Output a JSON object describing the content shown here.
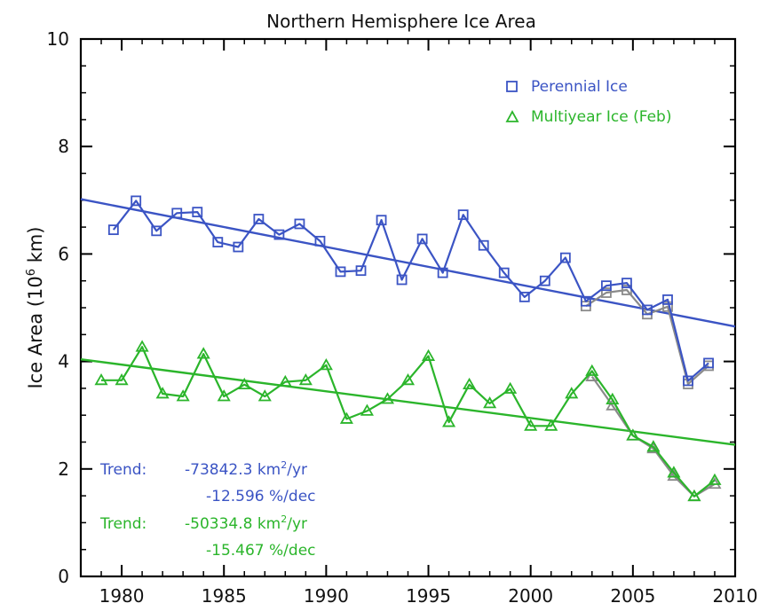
{
  "chart_data": {
    "type": "line",
    "title": "Northern Hemisphere Ice Area",
    "xlabel": "",
    "ylabel": "Ice Area (10",
    "ylabel_sup": "6",
    "ylabel_unit": " km)",
    "xlim": [
      1978,
      2010
    ],
    "ylim": [
      0,
      10
    ],
    "xticks": [
      1980,
      1985,
      1990,
      1995,
      2000,
      2005,
      2010
    ],
    "yticks": [
      0,
      2,
      4,
      6,
      8,
      10
    ],
    "grid": false,
    "legend_position": "top-right",
    "colors": {
      "perennial": "#3b54c4",
      "multiyear": "#2bb52b",
      "gray": "#8a8a8a"
    },
    "series": [
      {
        "name": "Perennial Ice",
        "marker": "square",
        "x": [
          1979.6,
          1980.7,
          1981.7,
          1982.7,
          1983.7,
          1984.7,
          1985.7,
          1986.7,
          1987.7,
          1988.7,
          1989.7,
          1990.7,
          1991.7,
          1992.7,
          1993.7,
          1994.7,
          1995.7,
          1996.7,
          1997.7,
          1998.7,
          1999.7,
          2000.7,
          2001.7,
          2002.7,
          2003.7,
          2004.7,
          2005.7,
          2006.7,
          2007.7,
          2008.7
        ],
        "values": [
          6.45,
          6.99,
          6.43,
          6.76,
          6.78,
          6.22,
          6.13,
          6.65,
          6.36,
          6.56,
          6.24,
          5.67,
          5.69,
          6.63,
          5.52,
          6.28,
          5.65,
          6.73,
          6.16,
          5.65,
          5.2,
          5.5,
          5.93,
          5.12,
          5.41,
          5.46,
          4.96,
          5.15,
          3.64,
          3.97
        ]
      },
      {
        "name": "Multiyear Ice (Feb)",
        "marker": "triangle",
        "x": [
          1979,
          1980,
          1981,
          1982,
          1983,
          1984,
          1985,
          1986,
          1987,
          1988,
          1989,
          1990,
          1991,
          1992,
          1993,
          1994,
          1995,
          1996,
          1997,
          1998,
          1999,
          2000,
          2001,
          2002,
          2003,
          2004,
          2005,
          2006,
          2007,
          2008,
          2009
        ],
        "values": [
          3.65,
          3.65,
          4.27,
          3.4,
          3.35,
          4.14,
          3.35,
          3.57,
          3.35,
          3.62,
          3.65,
          3.93,
          2.93,
          3.08,
          3.3,
          3.65,
          4.1,
          2.87,
          3.57,
          3.22,
          3.49,
          2.8,
          2.8,
          3.4,
          3.82,
          3.29,
          2.62,
          2.41,
          1.93,
          1.49,
          1.79
        ]
      }
    ],
    "alt_series": [
      {
        "name": "",
        "marker": "square",
        "x": [
          2002.7,
          2003.7,
          2004.7,
          2005.7,
          2006.7,
          2007.7,
          2008.7
        ],
        "values": [
          5.03,
          5.28,
          5.33,
          4.88,
          5.02,
          3.58,
          3.92
        ]
      },
      {
        "name": "",
        "marker": "triangle",
        "x": [
          2003,
          2004,
          2005,
          2006,
          2007,
          2008,
          2009
        ],
        "values": [
          3.72,
          3.18,
          2.62,
          2.38,
          1.87,
          1.49,
          1.72
        ]
      }
    ],
    "trend_lines": [
      {
        "series": "Perennial Ice",
        "x": [
          1978,
          2010
        ],
        "values": [
          7.02,
          4.65
        ]
      },
      {
        "series": "Multiyear Ice (Feb)",
        "x": [
          1978,
          2010
        ],
        "values": [
          4.04,
          2.45
        ]
      }
    ],
    "annotations": {
      "perennial_trend_label": "Trend:",
      "perennial_trend_value": "-73842.3 km",
      "perennial_trend_sup": "2",
      "perennial_trend_unit": "/yr",
      "perennial_trend_pct": "-12.596 %/dec",
      "multiyear_trend_label": "Trend:",
      "multiyear_trend_value": "-50334.8 km",
      "multiyear_trend_sup": "2",
      "multiyear_trend_unit": "/yr",
      "multiyear_trend_pct": "-15.467 %/dec"
    }
  }
}
